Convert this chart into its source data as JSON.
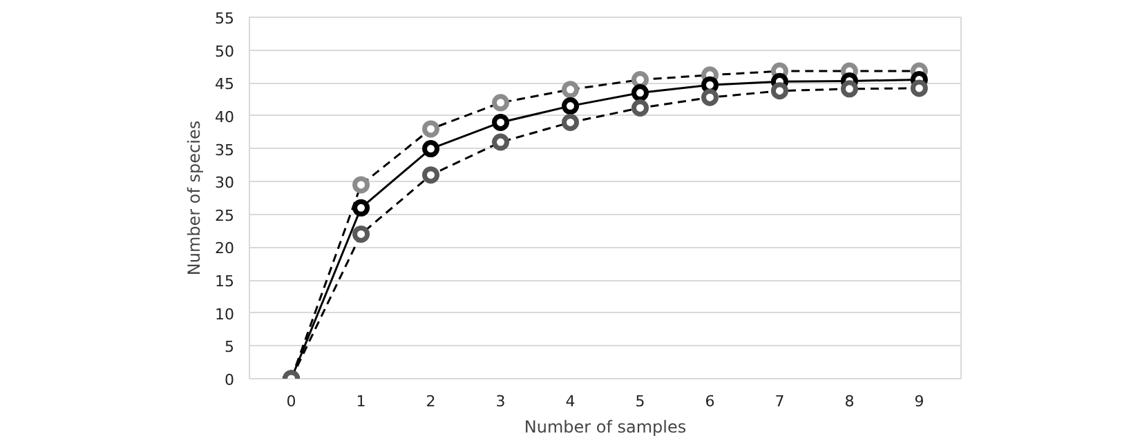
{
  "chart_data": {
    "type": "line",
    "xlabel": "Number of samples",
    "ylabel": "Number of species",
    "categories": [
      "0",
      "1",
      "2",
      "3",
      "4",
      "5",
      "6",
      "7",
      "8",
      "9"
    ],
    "series": [
      {
        "color": "#8c8c8c",
        "line_style": "dashed",
        "values": [
          0,
          29.5,
          38,
          42,
          44,
          45.5,
          46.2,
          46.8,
          46.8,
          46.8
        ]
      },
      {
        "color": "#000000",
        "line_style": "solid",
        "values": [
          0,
          26,
          35,
          39,
          41.5,
          43.5,
          44.7,
          45.2,
          45.3,
          45.5
        ]
      },
      {
        "color": "#595959",
        "line_style": "dashed",
        "values": [
          0,
          22,
          31,
          36,
          39,
          41.2,
          42.8,
          43.8,
          44.1,
          44.2
        ]
      }
    ],
    "ylim": [
      0,
      55
    ],
    "yticks": [
      0,
      5,
      10,
      15,
      20,
      25,
      30,
      35,
      40,
      45,
      50,
      55
    ],
    "grid": "y",
    "marker": "circle"
  }
}
